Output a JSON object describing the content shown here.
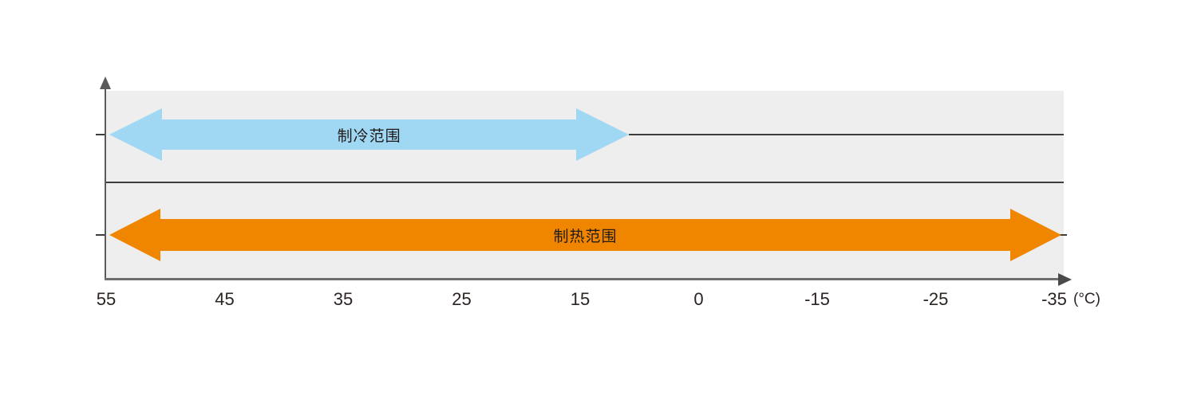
{
  "chart_data": {
    "type": "bar",
    "subtype": "double-headed-range-arrows",
    "orientation": "horizontal",
    "title": "",
    "unit_label": "(°C)",
    "categories": [
      "55",
      "45",
      "35",
      "25",
      "15",
      "0",
      "-15",
      "-25",
      "-35"
    ],
    "axis": {
      "direction": "decreasing-to-right",
      "grid": false,
      "panel_color": "#eeeeee",
      "unit": "°C"
    },
    "rows": [
      {
        "name": "cooling",
        "label": "制冷范围",
        "start": 55,
        "end": 8,
        "color": "#a0d7f2"
      },
      {
        "name": "heating",
        "label": "制热范围",
        "start": 55,
        "end": -35,
        "color": "#f08500"
      }
    ],
    "layout": {
      "cooling_tip_fraction": 0.546,
      "heating_tip_fraction": 1.0,
      "legend": "none"
    }
  },
  "colors": {
    "inner_line": "#3d3d3d",
    "axis_gray": "#5a5a5a",
    "text": "#2b2422",
    "background": "#ffffff"
  }
}
